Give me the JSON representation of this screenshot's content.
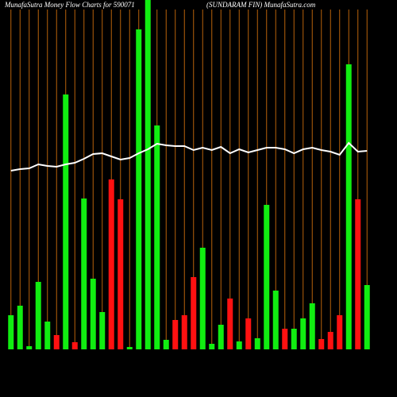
{
  "chart_data": {
    "type": "bar",
    "title": "MunafaSutra  Money Flow  Charts for 590071",
    "subtitle": "(SUNDARAM FIN) MunafaSutra.com",
    "categories": [
      null,
      null,
      null,
      null,
      null,
      null,
      null,
      null,
      null,
      null,
      null,
      null,
      null,
      null,
      null,
      null,
      null,
      null,
      null,
      null,
      null,
      null,
      null,
      null,
      null,
      null,
      null,
      null,
      null,
      null,
      null,
      null,
      null,
      null,
      null,
      null,
      null,
      null,
      null,
      null
    ],
    "values": [
      43,
      55,
      4,
      85,
      35,
      18,
      321,
      9,
      190,
      89,
      47,
      214,
      189,
      3,
      403,
      445,
      282,
      12,
      37,
      43,
      91,
      128,
      7,
      31,
      64,
      10,
      39,
      14,
      182,
      74,
      26,
      26,
      39,
      58,
      13,
      22,
      43,
      359,
      189,
      81
    ],
    "colors": [
      "#11ee11",
      "#11ee11",
      "#11ee11",
      "#11ee11",
      "#11ee11",
      "#ff1111",
      "#11ee11",
      "#ff1111",
      "#11ee11",
      "#11ee11",
      "#11ee11",
      "#ff1111",
      "#ff1111",
      "#11ee11",
      "#11ee11",
      "#11ee11",
      "#11ee11",
      "#11ee11",
      "#ff1111",
      "#ff1111",
      "#ff1111",
      "#11ee11",
      "#11ee11",
      "#11ee11",
      "#ff1111",
      "#11ee11",
      "#ff1111",
      "#11ee11",
      "#11ee11",
      "#11ee11",
      "#ff1111",
      "#11ee11",
      "#11ee11",
      "#11ee11",
      "#ff1111",
      "#ff1111",
      "#ff1111",
      "#11ee11",
      "#ff1111",
      "#11ee11"
    ],
    "line": {
      "color": "#ffffff",
      "values": [
        225,
        227,
        228,
        233,
        231,
        230,
        233,
        235,
        240,
        246,
        247,
        243,
        239,
        241,
        247,
        252,
        259,
        257,
        256,
        256,
        251,
        254,
        251,
        255,
        247,
        252,
        248,
        251,
        254,
        254,
        252,
        247,
        252,
        254,
        251,
        249,
        245,
        260,
        249,
        250
      ]
    },
    "ylim": [
      0,
      440
    ],
    "grid_color": "#b8620a"
  }
}
